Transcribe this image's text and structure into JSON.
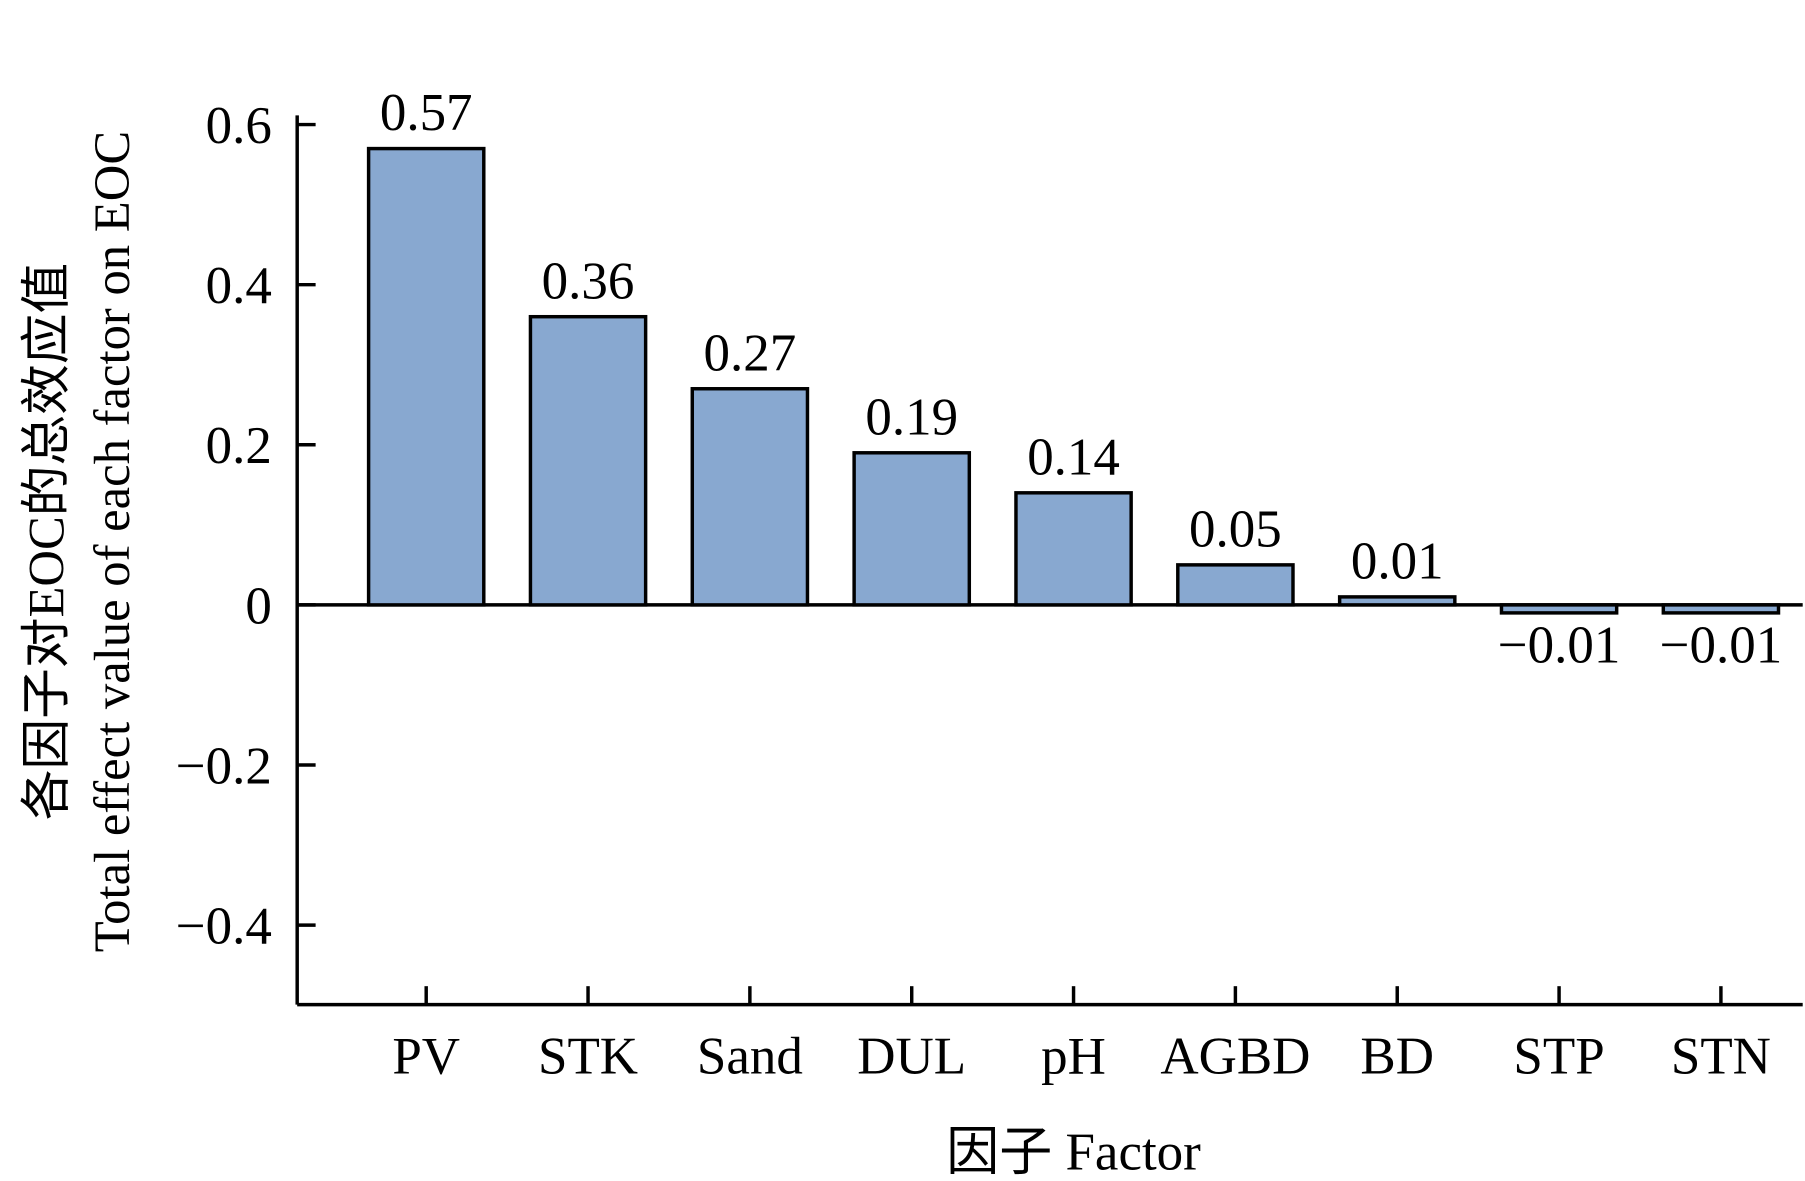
{
  "chart_data": {
    "type": "bar",
    "title": "",
    "categories": [
      "PV",
      "STK",
      "Sand",
      "DUL",
      "pH",
      "AGBD",
      "BD",
      "STP",
      "STN"
    ],
    "values": [
      0.57,
      0.36,
      0.27,
      0.19,
      0.14,
      0.05,
      0.01,
      -0.01,
      -0.01
    ],
    "data_labels": [
      "0.57",
      "0.36",
      "0.27",
      "0.19",
      "0.14",
      "0.05",
      "0.01",
      "−0.01",
      "−0.01"
    ],
    "xlabel": "因子 Factor",
    "ylabel_cn": "各因子对EOC的总效应值",
    "ylabel_en": "Total effect value of each factor on EOC",
    "ylim": [
      -0.5,
      0.6
    ],
    "yticks": [
      0.6,
      0.4,
      0.2,
      0,
      -0.2,
      -0.4
    ],
    "ytick_labels": [
      "0.6",
      "0.4",
      "0.2",
      "0",
      "−0.2",
      "−0.4"
    ],
    "grid": false,
    "bar_color": "#88a8d0"
  }
}
